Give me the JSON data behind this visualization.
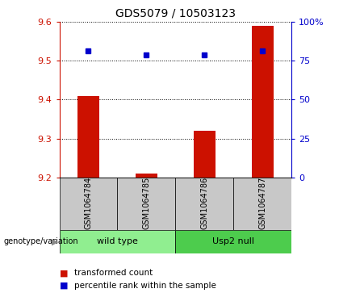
{
  "title": "GDS5079 / 10503123",
  "samples": [
    "GSM1064784",
    "GSM1064785",
    "GSM1064786",
    "GSM1064787"
  ],
  "red_values": [
    9.41,
    9.21,
    9.32,
    9.59
  ],
  "blue_values": [
    9.525,
    9.515,
    9.515,
    9.525
  ],
  "ylim": [
    9.2,
    9.6
  ],
  "yticks_left": [
    9.2,
    9.3,
    9.4,
    9.5,
    9.6
  ],
  "yticks_right_vals": [
    0,
    25,
    50,
    75,
    100
  ],
  "yticks_right_labels": [
    "0",
    "25",
    "50",
    "75",
    "100%"
  ],
  "groups": [
    {
      "label": "wild type",
      "indices": [
        0,
        1
      ],
      "color": "#90ee90"
    },
    {
      "label": "Usp2 null",
      "indices": [
        2,
        3
      ],
      "color": "#4dcc4d"
    }
  ],
  "genotype_label": "genotype/variation",
  "legend_red": "transformed count",
  "legend_blue": "percentile rank within the sample",
  "bar_color": "#cc1100",
  "dot_color": "#0000cc",
  "left_axis_color": "#cc1100",
  "right_axis_color": "#0000cc",
  "bar_width": 0.38,
  "sample_box_color": "#c8c8c8",
  "background_color": "#ffffff"
}
